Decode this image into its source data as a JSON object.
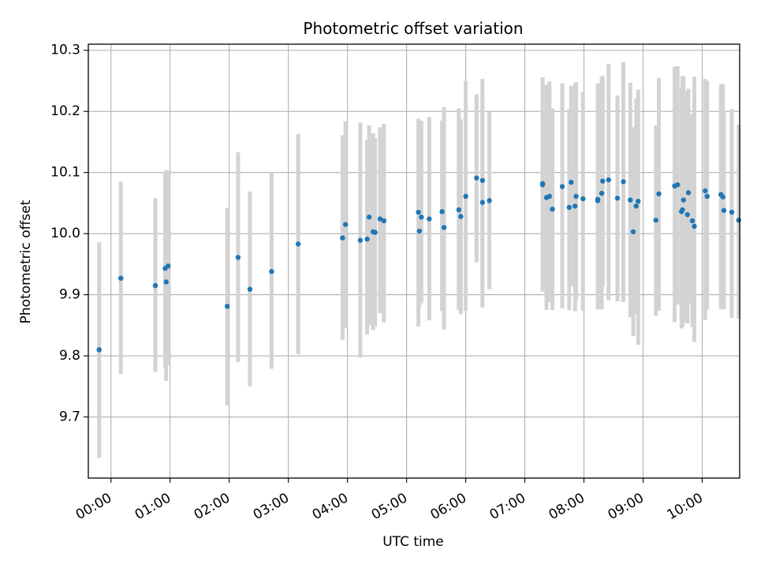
{
  "chart_data": {
    "type": "scatter",
    "title": "Photometric offset variation",
    "xlabel": "UTC time",
    "ylabel": "Photometric offset",
    "grid": true,
    "legend": "none",
    "error_bar_color": "#d3d3d3",
    "point_color": "#1f77b4",
    "xlim": [
      "23:37",
      "10:38"
    ],
    "ylim": [
      9.6,
      10.31
    ],
    "x_ticks": [
      "00:00",
      "01:00",
      "02:00",
      "03:00",
      "04:00",
      "05:00",
      "06:00",
      "07:00",
      "08:00",
      "09:00",
      "10:00"
    ],
    "y_ticks": [
      "9.7",
      "9.8",
      "9.9",
      "10.0",
      "10.1",
      "10.2",
      "10.3"
    ],
    "series": [
      {
        "x": [
          "23:48",
          "00:10",
          "00:45",
          "00:55",
          "00:56",
          "00:58",
          "01:58",
          "02:09",
          "02:21",
          "02:43",
          "03:10",
          "03:55",
          "03:58",
          "04:13",
          "04:20",
          "04:22",
          "04:26",
          "04:28",
          "04:33",
          "04:37",
          "05:12",
          "05:13",
          "05:15",
          "05:23",
          "05:36",
          "05:38",
          "05:53",
          "05:55",
          "06:00",
          "06:11",
          "06:17",
          "06:17",
          "06:24",
          "07:18",
          "07:18",
          "07:22",
          "07:25",
          "07:28",
          "07:38",
          "07:45",
          "07:47",
          "07:51",
          "07:52",
          "07:59",
          "08:14",
          "08:14",
          "08:18",
          "08:19",
          "08:25",
          "08:34",
          "08:40",
          "08:47",
          "08:50",
          "08:53",
          "08:55",
          "09:13",
          "09:16",
          "09:32",
          "09:35",
          "09:39",
          "09:40",
          "09:41",
          "09:45",
          "09:46",
          "09:50",
          "09:52",
          "10:03",
          "10:05",
          "10:19",
          "10:21",
          "10:22",
          "10:30",
          "10:37"
        ],
        "values": [
          9.81,
          9.927,
          9.915,
          9.943,
          9.921,
          9.947,
          9.881,
          9.961,
          9.909,
          9.938,
          9.983,
          9.993,
          10.015,
          9.989,
          9.991,
          10.027,
          10.003,
          10.002,
          10.024,
          10.021,
          10.035,
          10.004,
          10.027,
          10.024,
          10.036,
          10.01,
          10.039,
          10.028,
          10.061,
          10.091,
          10.051,
          10.087,
          10.054,
          10.08,
          10.082,
          10.059,
          10.061,
          10.04,
          10.077,
          10.043,
          10.084,
          10.045,
          10.061,
          10.057,
          10.054,
          10.056,
          10.066,
          10.086,
          10.088,
          10.058,
          10.085,
          10.055,
          10.003,
          10.045,
          10.053,
          10.022,
          10.065,
          10.078,
          10.08,
          10.036,
          10.039,
          10.055,
          10.031,
          10.067,
          10.021,
          10.012,
          10.07,
          10.061,
          10.064,
          10.06,
          10.038,
          10.035,
          10.022
        ],
        "err_low": [
          9.633,
          9.77,
          9.774,
          9.781,
          9.759,
          9.785,
          9.719,
          9.79,
          9.75,
          9.779,
          9.803,
          9.826,
          9.845,
          9.797,
          9.835,
          9.85,
          9.842,
          9.848,
          9.87,
          9.855,
          9.848,
          9.88,
          9.886,
          9.858,
          9.873,
          9.843,
          9.875,
          9.868,
          9.874,
          9.953,
          9.879,
          9.908,
          9.909,
          9.905,
          9.909,
          9.875,
          9.888,
          9.875,
          9.878,
          9.875,
          9.914,
          9.873,
          9.89,
          9.874,
          9.882,
          9.876,
          9.876,
          9.913,
          9.891,
          9.889,
          9.888,
          9.863,
          9.832,
          9.868,
          9.818,
          9.866,
          9.874,
          9.855,
          9.884,
          9.845,
          9.848,
          9.855,
          9.853,
          9.886,
          9.847,
          9.823,
          9.859,
          9.876,
          9.877,
          9.876,
          9.877,
          9.862,
          9.861
        ],
        "err_high": [
          9.986,
          10.085,
          10.058,
          10.101,
          10.104,
          10.103,
          10.042,
          10.133,
          10.069,
          10.1,
          10.163,
          10.161,
          10.184,
          10.182,
          10.154,
          10.177,
          10.164,
          10.156,
          10.174,
          10.18,
          10.188,
          10.184,
          10.185,
          10.191,
          10.185,
          10.207,
          10.205,
          10.187,
          10.25,
          10.228,
          10.223,
          10.253,
          10.199,
          10.256,
          10.252,
          10.244,
          10.249,
          10.205,
          10.246,
          10.204,
          10.242,
          10.245,
          10.248,
          10.232,
          10.243,
          10.246,
          10.256,
          10.258,
          10.278,
          10.226,
          10.281,
          10.247,
          10.174,
          10.221,
          10.236,
          10.177,
          10.255,
          10.273,
          10.274,
          10.239,
          10.258,
          10.257,
          10.233,
          10.237,
          10.196,
          10.257,
          10.253,
          10.25,
          10.244,
          10.245,
          10.2,
          10.204,
          10.178
        ]
      }
    ]
  }
}
